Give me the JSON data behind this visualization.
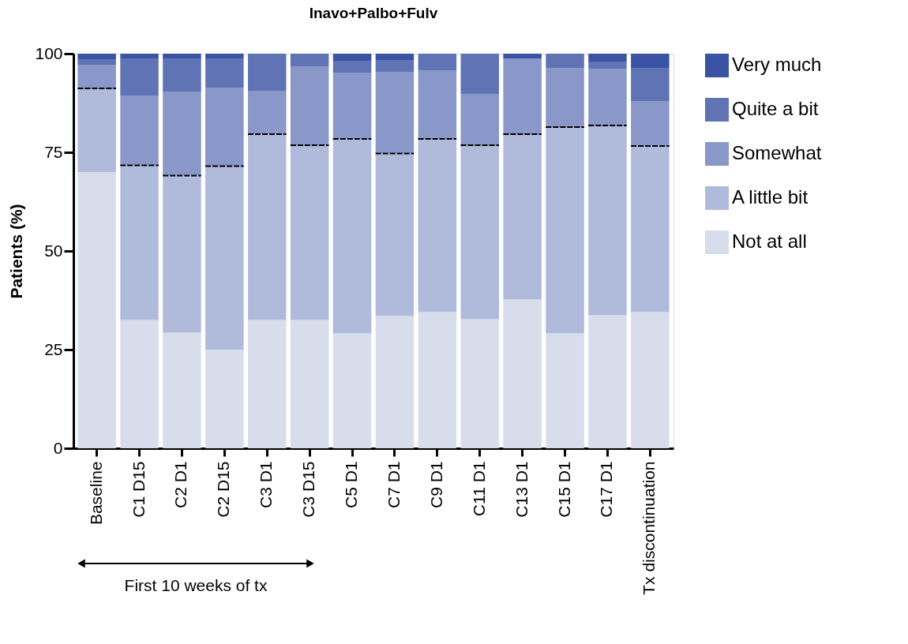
{
  "chart_data": {
    "type": "bar",
    "title": "Inavo+Palbo+Fulv",
    "ylabel": "Patients (%)",
    "stacked": true,
    "categories": [
      "Baseline",
      "C1 D15",
      "C2 D1",
      "C2 D15",
      "C3 D1",
      "C3 D15",
      "C5 D1",
      "C7 D1",
      "C9 D1",
      "C11 D1",
      "C13 D1",
      "C15 D1",
      "C17 D1",
      "Tx discontinuation"
    ],
    "series": [
      {
        "name": "Not at all",
        "color": "#d8ddec",
        "values": [
          70,
          32.5,
          29.3,
          25,
          32.5,
          32.5,
          29.1,
          33.5,
          34.5,
          32.7,
          37.7,
          29.1,
          33.7,
          34.5
        ]
      },
      {
        "name": "A little bit",
        "color": "#b0bbdb",
        "line_style": "dashed",
        "values": [
          21.2,
          39.2,
          39.8,
          46.5,
          47.1,
          44.3,
          49.3,
          41.2,
          43.9,
          44.1,
          41.9,
          52.3,
          48.1,
          42.1
        ]
      },
      {
        "name": "Somewhat",
        "color": "#8998c8",
        "values": [
          6,
          17.7,
          21.3,
          19.9,
          11,
          20,
          16.8,
          20.7,
          17.4,
          13,
          19.2,
          15,
          14.4,
          11.4
        ]
      },
      {
        "name": "Quite a bit",
        "color": "#6074b5",
        "values": [
          1.4,
          9.4,
          8.4,
          7.4,
          9.4,
          3.2,
          3,
          3,
          4.2,
          10.2,
          0,
          3.6,
          1.8,
          8.4
        ]
      },
      {
        "name": "Very much",
        "color": "#3a53a4",
        "values": [
          1.4,
          1.2,
          1.2,
          1.2,
          0,
          0,
          1.8,
          1.6,
          0,
          0,
          1.2,
          0,
          2,
          3.6
        ]
      }
    ],
    "ylim": [
      0,
      100
    ],
    "yticks": [
      0,
      25,
      50,
      75,
      100
    ],
    "grid": false,
    "legend": "right",
    "annotations": [
      "First 10 weeks of tx"
    ]
  }
}
